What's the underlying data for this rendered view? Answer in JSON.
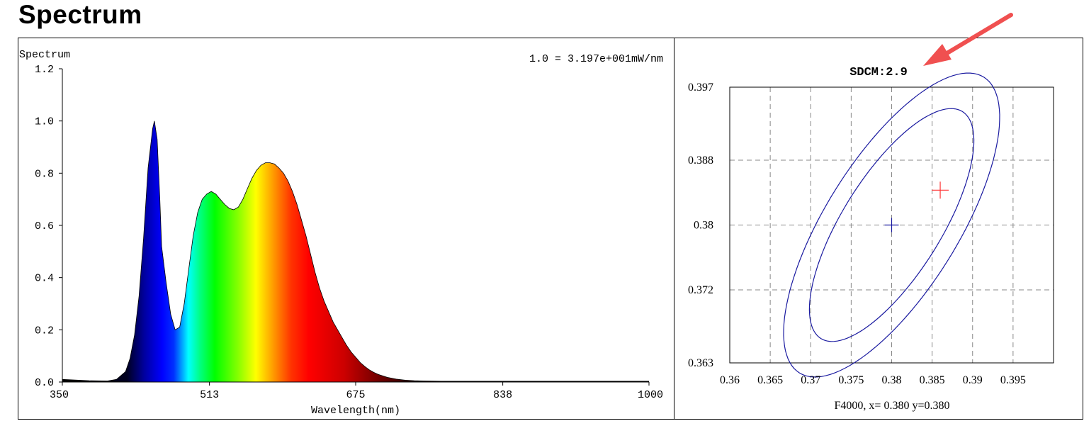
{
  "page": {
    "title": "Spectrum"
  },
  "chart_data": [
    {
      "type": "area",
      "title": "Spectrum",
      "scale_note": "1.0 = 3.197e+001mW/nm",
      "xlabel": "Wavelength(nm)",
      "ylabel": "",
      "xlim": [
        350,
        1000
      ],
      "ylim": [
        0,
        1.2
      ],
      "x_ticks": [
        350,
        513,
        675,
        838,
        1000
      ],
      "y_ticks": [
        "0.0",
        "0.2",
        "0.4",
        "0.6",
        "0.8",
        "1.0",
        "1.2"
      ],
      "grid": false,
      "x": [
        350,
        380,
        400,
        410,
        420,
        425,
        430,
        435,
        440,
        445,
        450,
        452,
        455,
        458,
        460,
        465,
        470,
        475,
        480,
        485,
        490,
        495,
        500,
        505,
        510,
        515,
        520,
        525,
        530,
        535,
        540,
        545,
        550,
        555,
        560,
        565,
        570,
        575,
        580,
        585,
        590,
        595,
        600,
        605,
        610,
        615,
        620,
        625,
        630,
        635,
        640,
        645,
        650,
        655,
        660,
        665,
        670,
        675,
        680,
        685,
        690,
        695,
        700,
        710,
        720,
        730,
        740,
        750,
        770,
        800,
        850,
        900,
        950,
        1000
      ],
      "y": [
        0.01,
        0.005,
        0.004,
        0.01,
        0.04,
        0.09,
        0.18,
        0.33,
        0.55,
        0.82,
        0.97,
        1.0,
        0.93,
        0.7,
        0.52,
        0.38,
        0.26,
        0.2,
        0.21,
        0.3,
        0.43,
        0.56,
        0.65,
        0.7,
        0.72,
        0.73,
        0.72,
        0.7,
        0.68,
        0.665,
        0.66,
        0.67,
        0.7,
        0.74,
        0.78,
        0.81,
        0.83,
        0.84,
        0.84,
        0.835,
        0.82,
        0.8,
        0.77,
        0.73,
        0.68,
        0.62,
        0.56,
        0.49,
        0.42,
        0.36,
        0.31,
        0.27,
        0.23,
        0.2,
        0.17,
        0.14,
        0.115,
        0.095,
        0.075,
        0.06,
        0.047,
        0.037,
        0.029,
        0.018,
        0.011,
        0.007,
        0.005,
        0.004,
        0.003,
        0.003,
        0.003,
        0.003,
        0.003,
        0.003
      ]
    },
    {
      "type": "scatter",
      "title": "SDCM:2.9",
      "caption": "F4000,  x= 0.380 y=0.380",
      "xlim": [
        0.36,
        0.4
      ],
      "ylim": [
        0.363,
        0.397
      ],
      "x_ticks": [
        "0.36",
        "0.365",
        "0.37",
        "0.375",
        "0.38",
        "0.385",
        "0.39",
        "0.395"
      ],
      "y_ticks": [
        "0.363",
        "0.372",
        "0.38",
        "0.388",
        "0.397"
      ],
      "grid": true,
      "points": [
        {
          "name": "target",
          "x": 0.38,
          "y": 0.38,
          "color": "#1a1aa0"
        },
        {
          "name": "measured",
          "x": 0.386,
          "y": 0.3843,
          "color": "#ff3333"
        }
      ],
      "ellipses": [
        {
          "cx": 0.38,
          "cy": 0.38,
          "semi_a": 0.0165,
          "semi_b": 0.0061,
          "angle_deg": 58
        },
        {
          "cx": 0.38,
          "cy": 0.38,
          "semi_a": 0.0215,
          "semi_b": 0.0082,
          "angle_deg": 58
        }
      ]
    }
  ],
  "colors": {
    "ellipse": "#1a1aa0",
    "measured": "#ff3333",
    "arrow": "#f05050",
    "grid": "#888888"
  }
}
